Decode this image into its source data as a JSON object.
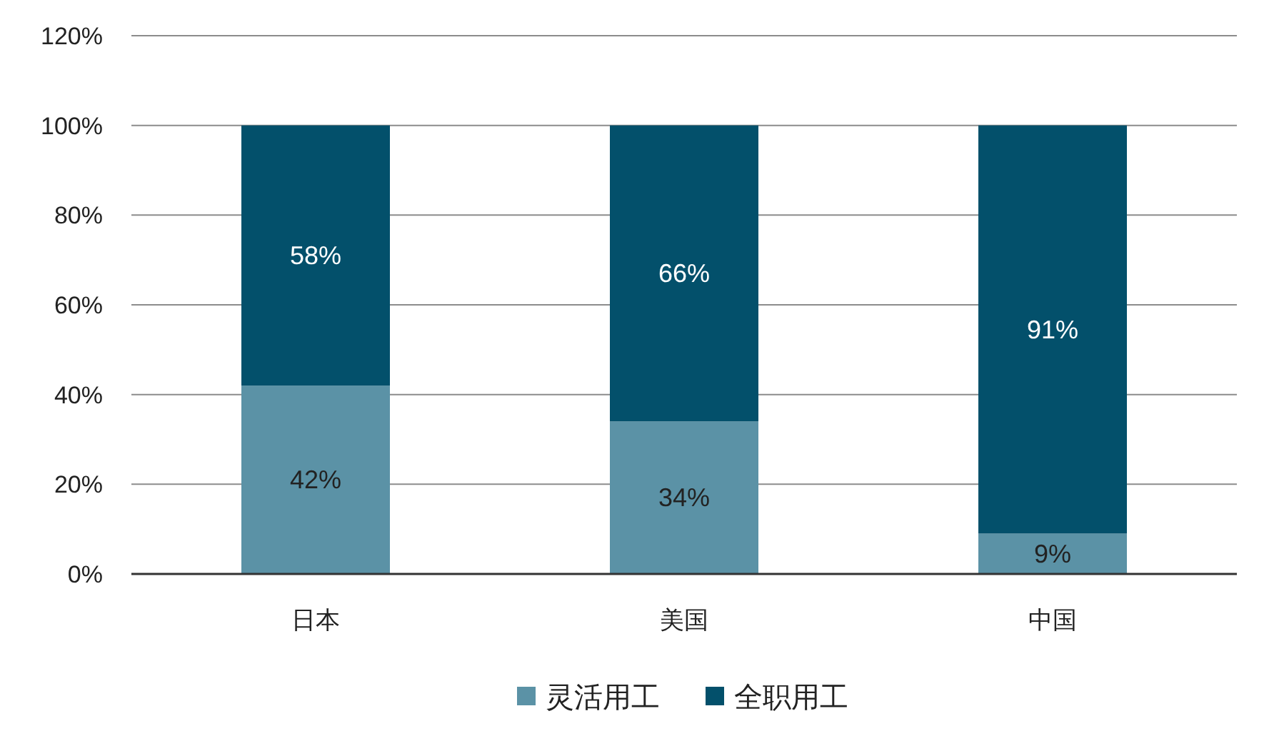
{
  "chart_data": {
    "type": "bar",
    "stacked": true,
    "categories": [
      "日本",
      "美国",
      "中国"
    ],
    "series": [
      {
        "name": "灵活用工",
        "color": "#5b92a6",
        "values": [
          42,
          34,
          9
        ],
        "value_labels": [
          "42%",
          "34%",
          "9%"
        ]
      },
      {
        "name": "全职用工",
        "color": "#03506b",
        "values": [
          58,
          66,
          91
        ],
        "value_labels": [
          "58%",
          "66%",
          "91%"
        ]
      }
    ],
    "ylim": [
      0,
      120
    ],
    "yticks": [
      {
        "value": 0,
        "label": "0%"
      },
      {
        "value": 20,
        "label": "20%"
      },
      {
        "value": 40,
        "label": "40%"
      },
      {
        "value": 60,
        "label": "60%"
      },
      {
        "value": 80,
        "label": "80%"
      },
      {
        "value": 100,
        "label": "100%"
      },
      {
        "value": 120,
        "label": "120%"
      }
    ],
    "grid": "y",
    "legend": "bottom"
  }
}
